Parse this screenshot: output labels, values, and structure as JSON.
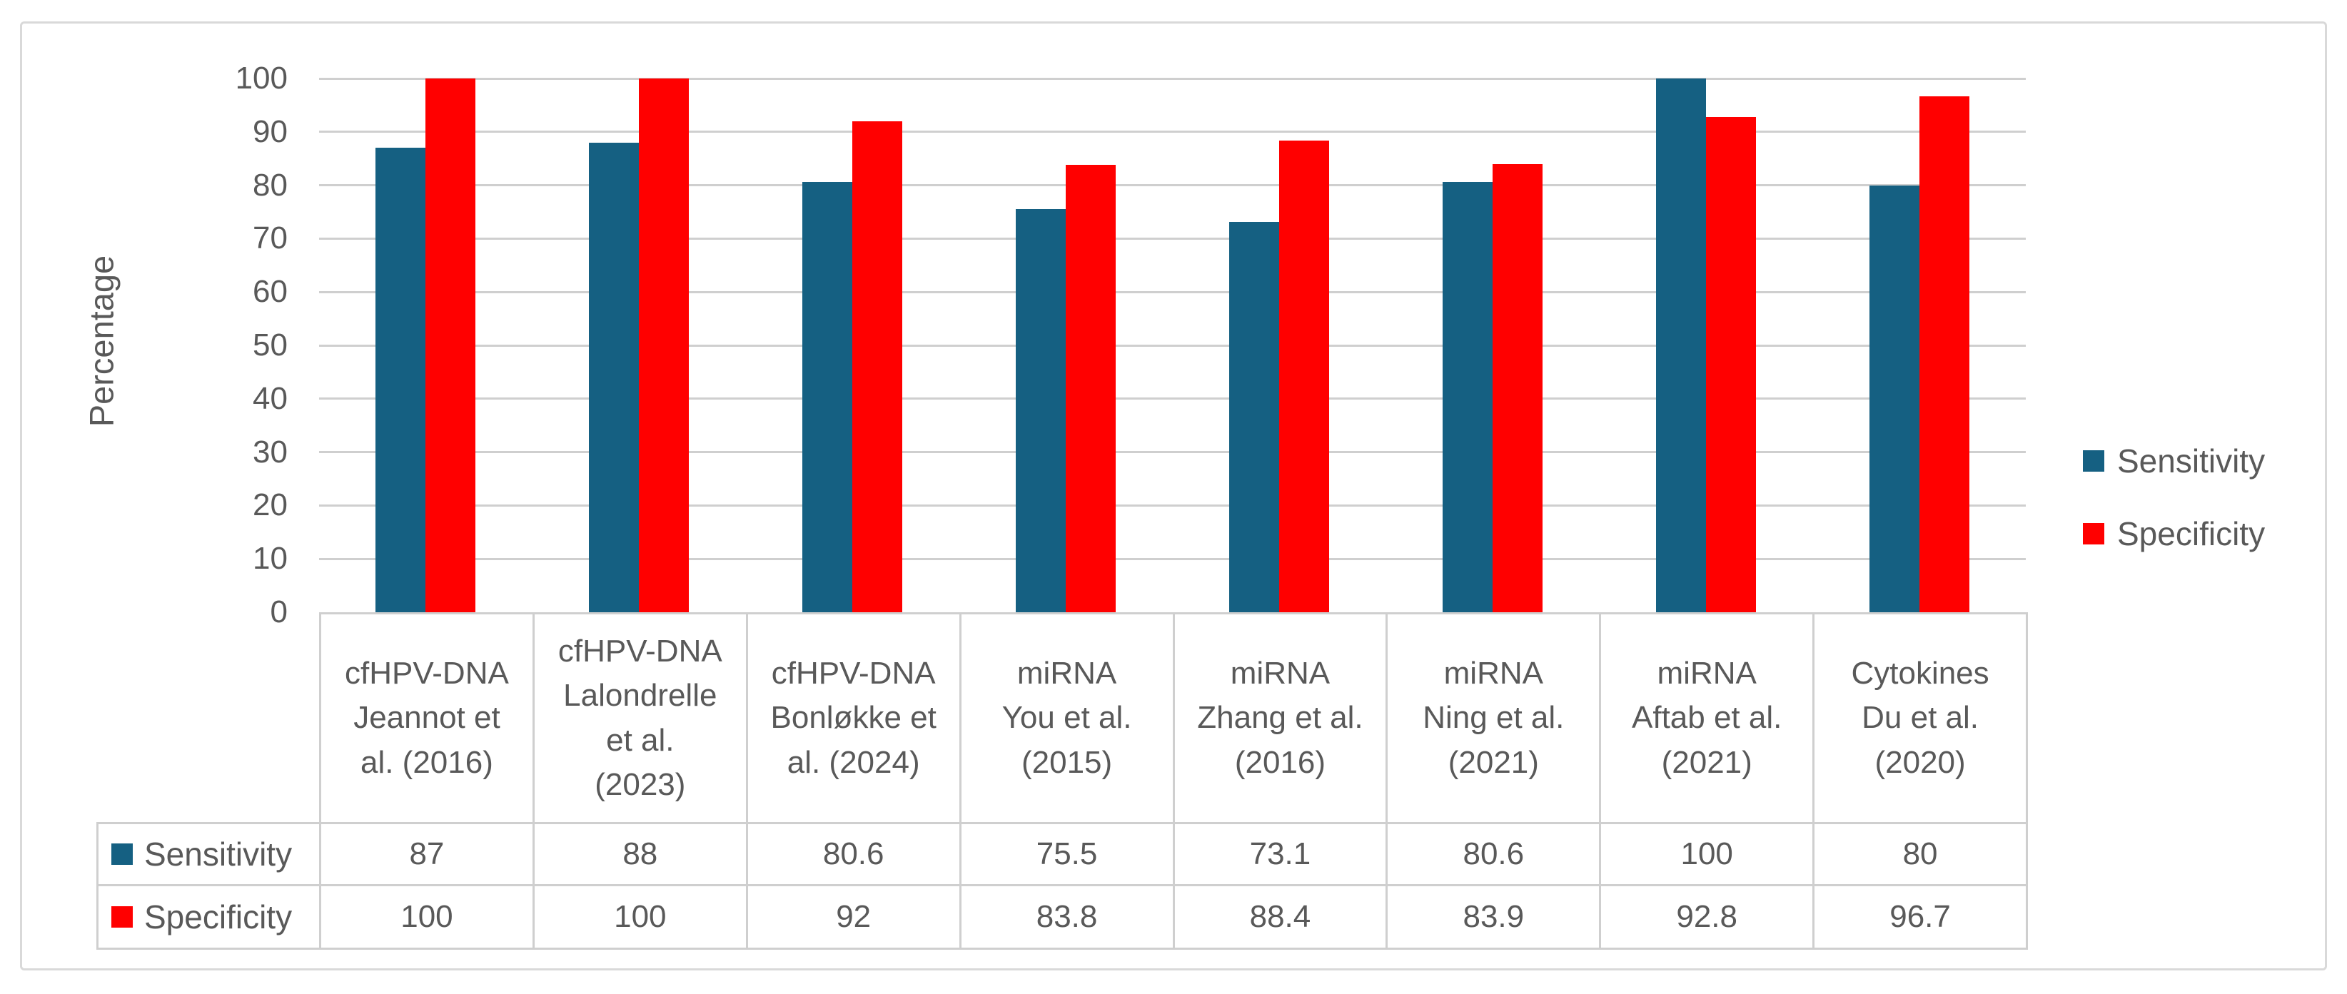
{
  "chart_data": {
    "type": "bar",
    "title": "",
    "ylabel": "Percentage",
    "ylim": [
      0,
      100
    ],
    "yticks": [
      0,
      10,
      20,
      30,
      40,
      50,
      60,
      70,
      80,
      90,
      100
    ],
    "grid": true,
    "legend_position": "right",
    "categories": [
      "cfHPV-DNA\nJeannot et\nal. (2016)",
      "cfHPV-DNA\nLalondrelle\net al.\n(2023)",
      "cfHPV-DNA\nBonløkke et\nal. (2024)",
      "miRNA\nYou et al.\n(2015)",
      "miRNA\nZhang et al.\n(2016)",
      "miRNA\nNing et al.\n(2021)",
      "miRNA\nAftab et al.\n(2021)",
      "Cytokines\nDu et al.\n(2020)"
    ],
    "series": [
      {
        "name": "Sensitivity",
        "color": "#156082",
        "values": [
          87,
          88,
          80.6,
          75.5,
          73.1,
          80.6,
          100,
          80
        ]
      },
      {
        "name": "Specificity",
        "color": "#FF0000",
        "values": [
          100,
          100,
          92,
          83.8,
          88.4,
          83.9,
          92.8,
          96.7
        ]
      }
    ],
    "colors": {
      "text": "#595959",
      "gridline": "#CFCFCF",
      "table_border": "#CFCFCF",
      "frame_border": "#D9D9D9",
      "background": "#FFFFFF"
    }
  }
}
